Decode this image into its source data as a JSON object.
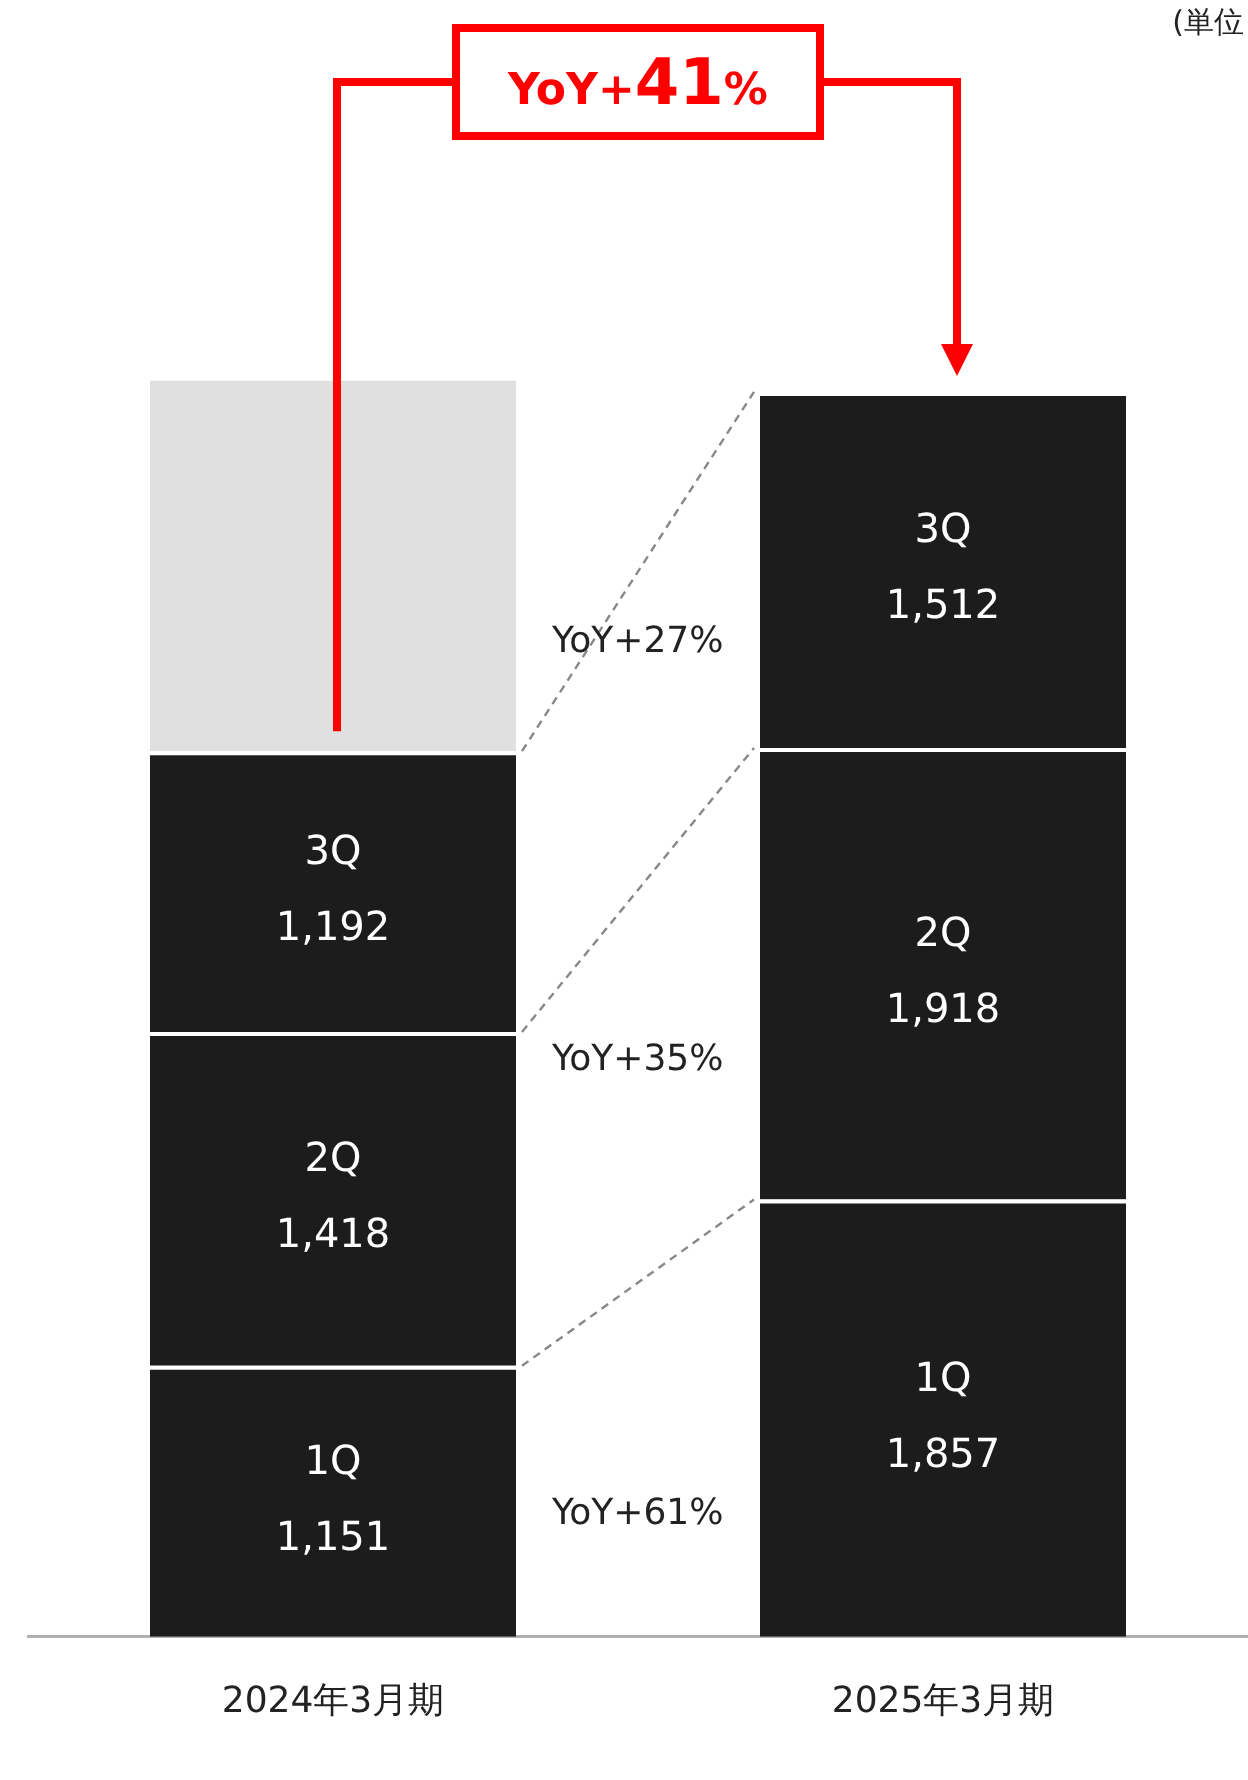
{
  "chart_data": {
    "type": "bar",
    "stacked": true,
    "categories": [
      "2024年3月期",
      "2025年3月期"
    ],
    "series": [
      {
        "name": "1Q",
        "color": "#1c1c1c",
        "values": [
          1151,
          1857
        ],
        "value_labels": [
          "1,151",
          "1,857"
        ]
      },
      {
        "name": "2Q",
        "color": "#1c1c1c",
        "values": [
          1418,
          1918
        ],
        "value_labels": [
          "1,418",
          "1,918"
        ]
      },
      {
        "name": "3Q",
        "color": "#1c1c1c",
        "values": [
          1192,
          1512
        ],
        "value_labels": [
          "1,192",
          "1,512"
        ]
      },
      {
        "color": "#e0e0e0",
        "values": [
          1590,
          null
        ]
      }
    ],
    "legend": false,
    "tick_labels": "x",
    "annotations": [
      "(単位",
      "YoY+41%",
      "YoY+27%",
      "YoY+35%",
      "YoY+61%"
    ]
  }
}
